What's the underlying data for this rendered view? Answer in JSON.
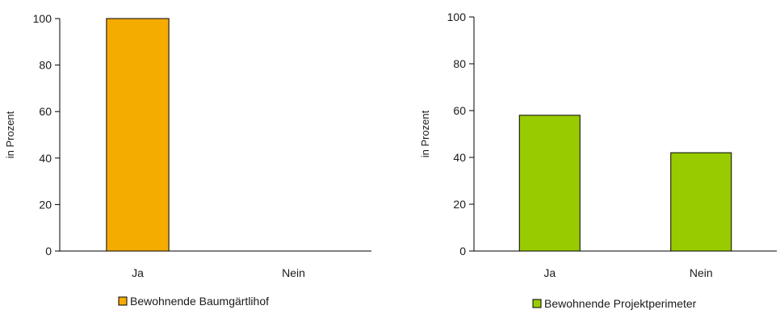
{
  "chart_data": [
    {
      "type": "bar",
      "categories": [
        "Ja",
        "Nein"
      ],
      "series": [
        {
          "name": "Bewohnende Baumgärtlihof",
          "values": [
            100,
            0
          ],
          "color": "#f5ac00"
        }
      ],
      "ylabel": "in Prozent",
      "ylim": [
        0,
        100
      ],
      "yticks": [
        0,
        20,
        40,
        60,
        80,
        100
      ],
      "grid": false,
      "legend": "bottom"
    },
    {
      "type": "bar",
      "categories": [
        "Ja",
        "Nein"
      ],
      "series": [
        {
          "name": "Bewohnende Projektperimeter",
          "values": [
            58,
            42
          ],
          "color": "#99cc00"
        }
      ],
      "ylabel": "in Prozent",
      "ylim": [
        0,
        100
      ],
      "yticks": [
        0,
        20,
        40,
        60,
        80,
        100
      ],
      "grid": false,
      "legend": "bottom"
    }
  ]
}
